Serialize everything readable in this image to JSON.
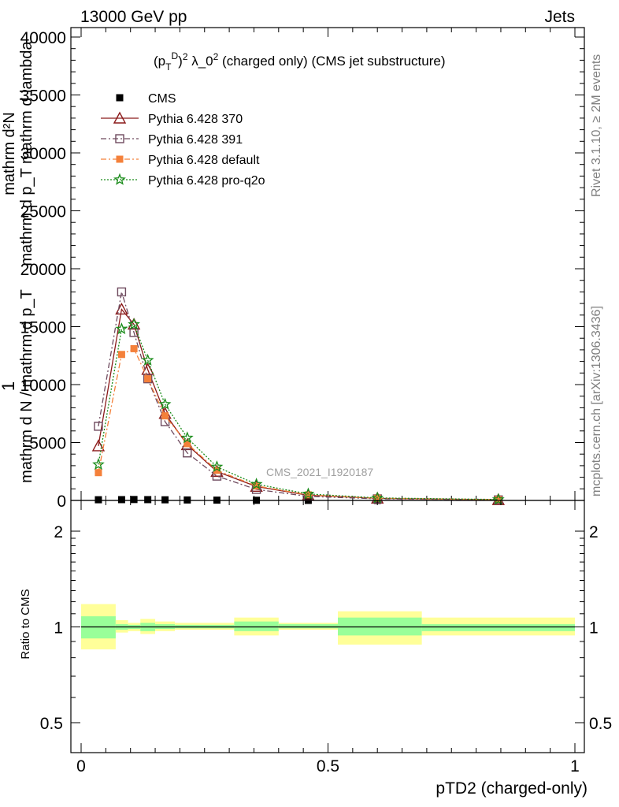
{
  "header": {
    "left": "13000 GeV pp",
    "right": "Jets"
  },
  "side_labels": {
    "top": "Rivet 3.1.10, ≥ 2M events",
    "bottom": "mcplots.cern.ch [arXiv:1306.3436]"
  },
  "watermark": "CMS_2021_I1920187",
  "main_title": "(p_T^D)^2 λ_0^2 (charged only) (CMS jet substructure)",
  "main_ylabel": {
    "numerator": "mathrm d²N",
    "denominator": "mathrm d p_T mathrm d lambda",
    "front": "1",
    "front_den": "mathrm d N / mathrm d p_T"
  },
  "ratio_ylabel": "Ratio to CMS",
  "xlabel": "pTD2 (charged-only)",
  "chart_data": [
    {
      "type": "line",
      "title": "(p_T^D)^2 λ_0^2 (charged only) (CMS jet substructure)",
      "xlabel": "pTD2 (charged-only)",
      "xlim": [
        0,
        1
      ],
      "ylim": [
        0,
        40000
      ],
      "x_ticks": [
        0,
        0.5,
        1
      ],
      "y_ticks": [
        0,
        5000,
        10000,
        15000,
        20000,
        25000,
        30000,
        35000,
        40000
      ],
      "y_tick_labels": [
        "0",
        "5000",
        "10000",
        "15000",
        "20000",
        "25000",
        "30000",
        "35000",
        "40000"
      ],
      "legend": "top-left",
      "series": [
        {
          "name": "CMS",
          "color": "#000000",
          "marker": "square-filled",
          "x": [
            0.035,
            0.082,
            0.107,
            0.135,
            0.17,
            0.215,
            0.275,
            0.355,
            0.46,
            0.6,
            0.845
          ],
          "y": [
            60,
            70,
            80,
            70,
            55,
            40,
            25,
            12,
            5,
            2,
            1
          ]
        },
        {
          "name": "Pythia 6.428 370",
          "color": "#8b1a1a",
          "marker": "triangle-open",
          "dash": "",
          "x": [
            0.035,
            0.082,
            0.107,
            0.135,
            0.17,
            0.215,
            0.275,
            0.355,
            0.46,
            0.6,
            0.845
          ],
          "y": [
            4700,
            16500,
            15200,
            11300,
            7500,
            4800,
            2500,
            1200,
            450,
            180,
            60
          ]
        },
        {
          "name": "Pythia 6.428 391",
          "color": "#6e4a5e",
          "marker": "square-open",
          "dash": "7,3,2,3",
          "x": [
            0.035,
            0.082,
            0.107,
            0.135,
            0.17,
            0.215,
            0.275,
            0.355,
            0.46,
            0.6,
            0.845
          ],
          "y": [
            6400,
            18000,
            14500,
            10500,
            6800,
            4100,
            2100,
            950,
            350,
            140,
            50
          ]
        },
        {
          "name": "Pythia 6.428 default",
          "color": "#f4803a",
          "marker": "square-filled",
          "dash": "7,3,2,3",
          "x": [
            0.035,
            0.082,
            0.107,
            0.135,
            0.17,
            0.215,
            0.275,
            0.355,
            0.46,
            0.6,
            0.845
          ],
          "y": [
            2400,
            12600,
            13100,
            10500,
            7300,
            4900,
            2600,
            1250,
            480,
            190,
            70
          ]
        },
        {
          "name": "Pythia 6.428 pro-q2o",
          "color": "#1a8c1a",
          "marker": "star",
          "dash": "2,2",
          "x": [
            0.035,
            0.082,
            0.107,
            0.135,
            0.17,
            0.215,
            0.275,
            0.355,
            0.46,
            0.6,
            0.845
          ],
          "y": [
            3100,
            14800,
            15200,
            12100,
            8300,
            5400,
            2900,
            1400,
            560,
            220,
            80
          ]
        }
      ]
    },
    {
      "type": "area",
      "ylabel": "Ratio to CMS",
      "xlim": [
        0,
        1
      ],
      "ylim": [
        0.35,
        2.35
      ],
      "y_ticks": [
        0.5,
        1,
        2
      ],
      "y_tick_labels": [
        "0.5",
        "1",
        "2"
      ],
      "x_ticks": [
        0,
        0.5,
        1
      ],
      "x_tick_labels": [
        "0",
        "0.5",
        "1"
      ],
      "reference": 1,
      "band_colors": {
        "outer": "#ffff99",
        "inner": "#99ff99"
      },
      "bins": [
        {
          "lo": 0.0,
          "hi": 0.07,
          "outer": [
            0.85,
            1.18
          ],
          "inner": [
            0.92,
            1.08
          ]
        },
        {
          "lo": 0.07,
          "hi": 0.095,
          "outer": [
            0.96,
            1.05
          ],
          "inner": [
            0.98,
            1.02
          ]
        },
        {
          "lo": 0.095,
          "hi": 0.12,
          "outer": [
            0.97,
            1.03
          ],
          "inner": [
            0.985,
            1.015
          ]
        },
        {
          "lo": 0.12,
          "hi": 0.15,
          "outer": [
            0.95,
            1.06
          ],
          "inner": [
            0.97,
            1.03
          ]
        },
        {
          "lo": 0.15,
          "hi": 0.19,
          "outer": [
            0.97,
            1.04
          ],
          "inner": [
            0.985,
            1.02
          ]
        },
        {
          "lo": 0.19,
          "hi": 0.24,
          "outer": [
            0.98,
            1.03
          ],
          "inner": [
            0.99,
            1.015
          ]
        },
        {
          "lo": 0.24,
          "hi": 0.31,
          "outer": [
            0.98,
            1.03
          ],
          "inner": [
            0.99,
            1.015
          ]
        },
        {
          "lo": 0.31,
          "hi": 0.4,
          "outer": [
            0.94,
            1.07
          ],
          "inner": [
            0.97,
            1.04
          ]
        },
        {
          "lo": 0.4,
          "hi": 0.52,
          "outer": [
            0.98,
            1.03
          ],
          "inner": [
            0.99,
            1.02
          ]
        },
        {
          "lo": 0.52,
          "hi": 0.69,
          "outer": [
            0.88,
            1.12
          ],
          "inner": [
            0.94,
            1.07
          ]
        },
        {
          "lo": 0.69,
          "hi": 1.0,
          "outer": [
            0.94,
            1.07
          ],
          "inner": [
            0.97,
            1.02
          ]
        }
      ]
    }
  ]
}
